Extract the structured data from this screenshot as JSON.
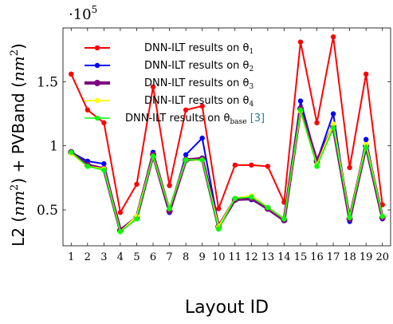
{
  "chart_data": {
    "type": "line",
    "xlabel": "Layout ID",
    "ylabel_prefix": "L2 (",
    "ylabel_unit": "nm",
    "ylabel_sup": "2",
    "ylabel_mid": ") + PVBand (",
    "ylabel_end": ")",
    "scale_base": "·10",
    "scale_exp": "5",
    "ylim": [
      0.22,
      1.92
    ],
    "xlim": [
      0.5,
      20.5
    ],
    "x": [
      1,
      2,
      3,
      4,
      5,
      6,
      7,
      8,
      9,
      10,
      11,
      12,
      13,
      14,
      15,
      16,
      17,
      18,
      19,
      20
    ],
    "x_tick_labels": [
      "1",
      "2",
      "3",
      "4",
      "5",
      "6",
      "7",
      "8",
      "9",
      "10",
      "11",
      "12",
      "13",
      "14",
      "15",
      "16",
      "17",
      "18",
      "19",
      "20"
    ],
    "y_ticks": [
      0.5,
      1,
      1.5
    ],
    "y_tick_labels": [
      "0.5",
      "1",
      "1.5"
    ],
    "grid": false,
    "legend_position": "top-left",
    "series": [
      {
        "name": "DNN-ILT results on θ",
        "legend_sub": "1",
        "color": "#ff0000",
        "line_width": 2,
        "values": [
          1.56,
          1.28,
          1.18,
          0.48,
          0.7,
          1.46,
          0.69,
          1.28,
          1.31,
          0.51,
          0.85,
          0.85,
          0.84,
          0.56,
          1.81,
          1.18,
          1.85,
          0.83,
          1.56,
          0.54
        ]
      },
      {
        "name": "DNN-ILT results on θ",
        "legend_sub": "2",
        "color": "#0000ff",
        "line_width": 2,
        "values": [
          0.95,
          0.88,
          0.86,
          0.34,
          0.45,
          0.95,
          0.48,
          0.93,
          1.06,
          0.38,
          0.58,
          0.58,
          0.51,
          0.43,
          1.35,
          0.88,
          1.25,
          0.41,
          1.05,
          0.43
        ]
      },
      {
        "name": "DNN-ILT results on θ",
        "legend_sub": "3",
        "color": "#800080",
        "line_width": 4,
        "values": [
          0.95,
          0.85,
          0.82,
          0.34,
          0.44,
          0.93,
          0.49,
          0.89,
          0.9,
          0.37,
          0.58,
          0.59,
          0.51,
          0.42,
          1.29,
          0.88,
          1.15,
          0.43,
          1.0,
          0.44
        ]
      },
      {
        "name": "DNN-ILT results on θ",
        "legend_sub": "4",
        "color": "#ffff00",
        "line_width": 2,
        "values": [
          0.94,
          0.84,
          0.82,
          0.33,
          0.45,
          0.92,
          0.51,
          0.89,
          0.89,
          0.37,
          0.59,
          0.61,
          0.52,
          0.43,
          1.27,
          0.85,
          1.17,
          0.44,
          1.01,
          0.45
        ]
      },
      {
        "name": "DNN-ILT results on θ",
        "legend_sub": "base",
        "legend_cite": "[3]",
        "color": "#00ff00",
        "line_width": 1.5,
        "values": [
          0.95,
          0.84,
          0.81,
          0.33,
          0.43,
          0.92,
          0.51,
          0.89,
          0.89,
          0.35,
          0.59,
          0.6,
          0.52,
          0.43,
          1.28,
          0.84,
          1.14,
          0.44,
          0.99,
          0.45
        ]
      }
    ]
  }
}
